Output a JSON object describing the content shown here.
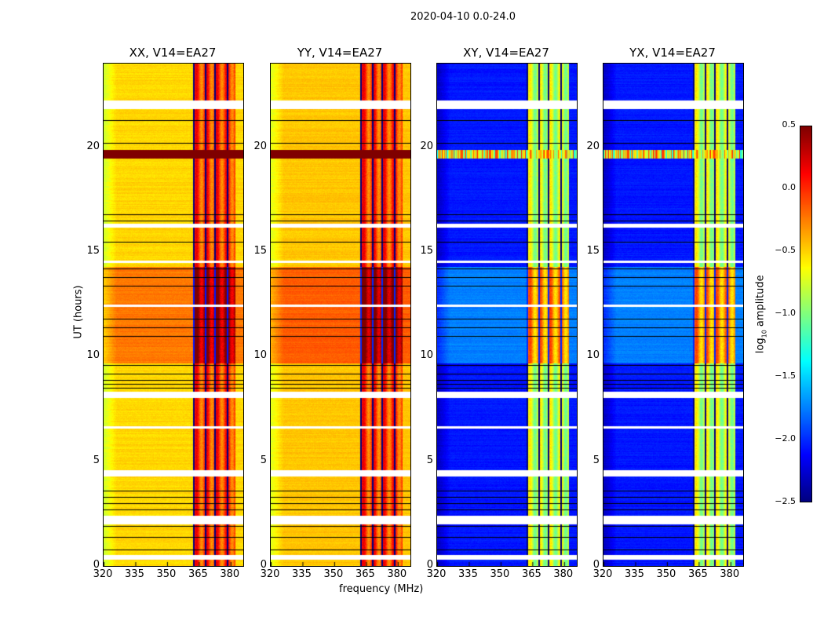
{
  "chart_data": {
    "type": "heatmap",
    "title": "2020-04-10 0.0-24.0",
    "xlabel": "frequency (MHz)",
    "ylabel": "UT (hours)",
    "xlim": [
      320,
      386
    ],
    "ylim": [
      0,
      24
    ],
    "xticks": [
      320,
      335,
      350,
      365,
      380
    ],
    "xtick_labels": [
      "320",
      "335",
      "350",
      "365",
      "380"
    ],
    "yticks": [
      0,
      5,
      10,
      15,
      20
    ],
    "ytick_labels": [
      "0",
      "5",
      "10",
      "15",
      "20"
    ],
    "colormap": "jet",
    "colorbar": {
      "label": "log10 amplitude",
      "label_main": "log",
      "label_sub": "10",
      "label_rest": " amplitude",
      "range": [
        -2.5,
        0.5
      ],
      "ticks": [
        0.5,
        0.0,
        -0.5,
        -1.0,
        -1.5,
        -2.0,
        -2.5
      ],
      "tick_labels": [
        "0.5",
        "0.0",
        "−0.5",
        "−1.0",
        "−1.5",
        "−2.0",
        "−2.5"
      ]
    },
    "flagged_hours_white": [
      [
        0.3,
        0.55
      ],
      [
        2.0,
        2.4
      ],
      [
        8.05,
        8.35
      ],
      [
        21.85,
        22.25
      ],
      [
        16.2,
        16.35
      ],
      [
        14.5,
        14.6
      ],
      [
        12.4,
        12.5
      ],
      [
        6.6,
        6.7
      ],
      [
        4.3,
        4.6
      ]
    ],
    "flagged_hours_black_lines": [
      0.8,
      1.4,
      1.9,
      2.7,
      3.0,
      3.3,
      3.6,
      8.5,
      8.7,
      8.9,
      9.2,
      9.6,
      11.0,
      11.4,
      11.8,
      13.4,
      13.8,
      14.2,
      15.5,
      16.5,
      16.8,
      20.2,
      21.3
    ],
    "rfi_band_mhz": [
      362,
      382
    ],
    "rfi_channels_mhz": [
      362.5,
      368,
      372.5,
      378.5
    ],
    "panels": [
      {
        "name": "XX",
        "title": "XX, V14=EA27",
        "base": -0.55,
        "band": -0.05,
        "day_boost": 0.4,
        "day_hours": [
          9.7,
          14.3
        ],
        "burst_hours": [
          19.5,
          19.9
        ],
        "burst": 0.5
      },
      {
        "name": "YY",
        "title": "YY, V14=EA27",
        "base": -0.5,
        "band": -0.05,
        "day_boost": 0.45,
        "day_hours": [
          9.7,
          14.3
        ],
        "burst_hours": [
          19.5,
          19.9
        ],
        "burst": 0.5
      },
      {
        "name": "XY",
        "title": "XY, V14=EA27",
        "base": -2.1,
        "band": -0.8,
        "day_boost": 0.45,
        "day_hours": [
          9.7,
          14.3
        ],
        "burst_hours": [
          19.5,
          19.9
        ],
        "burst": -1.0
      },
      {
        "name": "YX",
        "title": "YX, V14=EA27",
        "base": -2.1,
        "band": -0.8,
        "day_boost": 0.45,
        "day_hours": [
          9.7,
          14.3
        ],
        "burst_hours": [
          19.5,
          19.9
        ],
        "burst": -1.0
      }
    ]
  }
}
